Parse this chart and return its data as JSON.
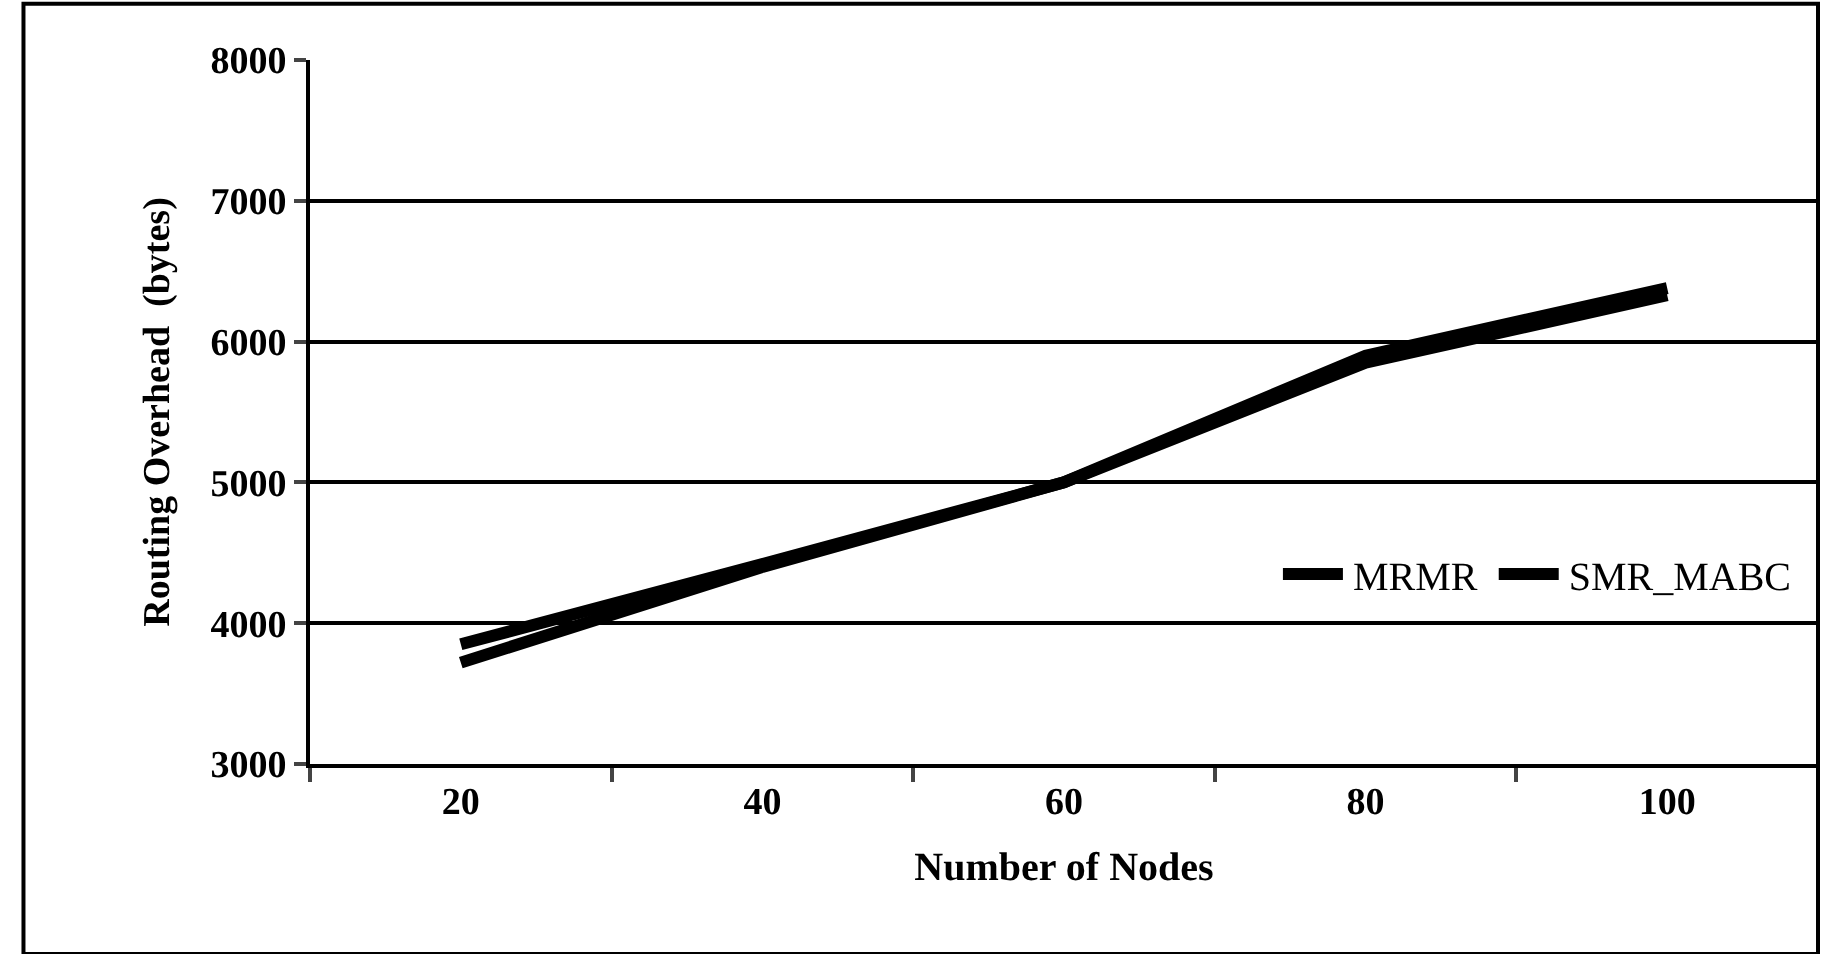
{
  "chart_data": {
    "type": "line",
    "xlabel": "Number of Nodes",
    "ylabel": "Routing Overhead  (bytes)",
    "categories": [
      "20",
      "40",
      "60",
      "80",
      "100"
    ],
    "series": [
      {
        "name": "MRMR",
        "color": "#000000",
        "values": [
          3850,
          4420,
          5000,
          5900,
          6380
        ]
      },
      {
        "name": "SMR_MABC",
        "color": "#000000",
        "values": [
          3720,
          4400,
          5000,
          5850,
          6330
        ]
      }
    ],
    "ylim": [
      3000,
      8000
    ],
    "yticks": [
      3000,
      4000,
      5000,
      6000,
      7000,
      8000
    ],
    "grid": "y",
    "legend": "right",
    "marker": "none",
    "line_style": "solid"
  }
}
